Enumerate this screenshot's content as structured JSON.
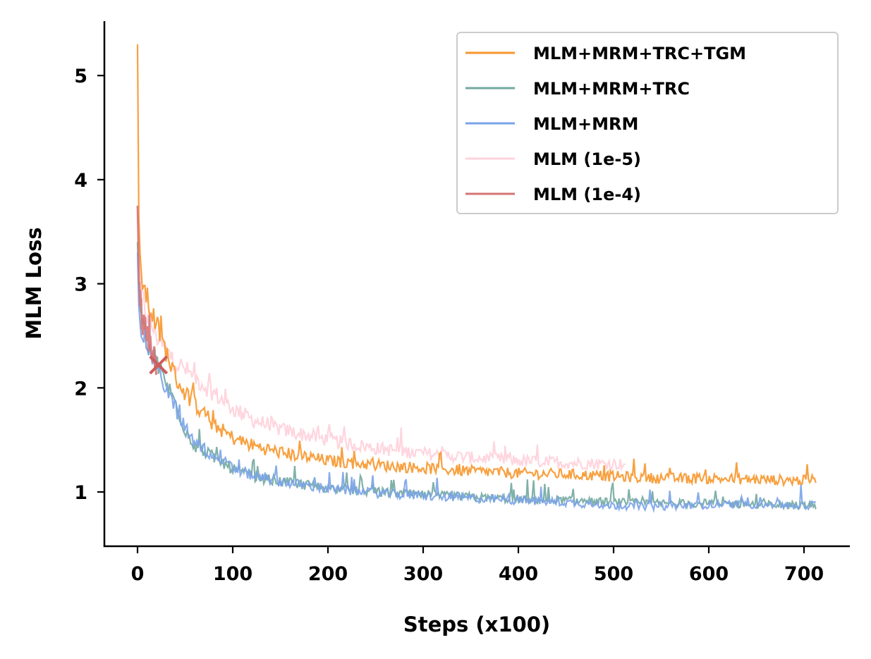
{
  "chart_data": {
    "type": "line",
    "xlabel": "Steps (x100)",
    "ylabel": "MLM Loss",
    "xlim": [
      -35,
      750
    ],
    "ylim": [
      0.5,
      5.55
    ],
    "xticks": [
      0,
      100,
      200,
      300,
      400,
      500,
      600,
      700
    ],
    "yticks": [
      1,
      2,
      3,
      4,
      5
    ],
    "grid": false,
    "legend_position": "top-right",
    "series": [
      {
        "name": "MLM+MRM+TRC+TGM",
        "color": "#f7962a",
        "x": [
          0,
          1,
          2,
          5,
          10,
          20,
          30,
          40,
          50,
          60,
          80,
          100,
          120,
          150,
          200,
          250,
          300,
          350,
          400,
          450,
          500,
          550,
          600,
          650,
          700,
          713
        ],
        "y": [
          5.3,
          3.7,
          3.2,
          3.05,
          2.85,
          2.6,
          2.35,
          2.1,
          1.95,
          1.85,
          1.65,
          1.52,
          1.45,
          1.38,
          1.3,
          1.26,
          1.23,
          1.2,
          1.18,
          1.17,
          1.15,
          1.13,
          1.13,
          1.12,
          1.11,
          1.12
        ]
      },
      {
        "name": "MLM+MRM+TRC",
        "color": "#72a8a0",
        "x": [
          0,
          2,
          5,
          10,
          20,
          30,
          40,
          50,
          60,
          80,
          100,
          120,
          150,
          200,
          250,
          300,
          350,
          400,
          450,
          500,
          550,
          600,
          650,
          700,
          713
        ],
        "y": [
          3.4,
          2.75,
          2.6,
          2.45,
          2.25,
          2.05,
          1.85,
          1.6,
          1.45,
          1.33,
          1.22,
          1.15,
          1.1,
          1.04,
          1.0,
          0.97,
          0.95,
          0.93,
          0.92,
          0.9,
          0.89,
          0.89,
          0.88,
          0.87,
          0.87
        ]
      },
      {
        "name": "MLM+MRM",
        "color": "#7aa3e8",
        "x": [
          0,
          2,
          5,
          10,
          20,
          30,
          40,
          50,
          60,
          80,
          100,
          120,
          150,
          200,
          250,
          300,
          350,
          400,
          450,
          500,
          550,
          600,
          650,
          700,
          713
        ],
        "y": [
          3.3,
          2.7,
          2.55,
          2.42,
          2.2,
          2.0,
          1.8,
          1.62,
          1.47,
          1.35,
          1.23,
          1.16,
          1.1,
          1.03,
          0.99,
          0.96,
          0.94,
          0.92,
          0.9,
          0.87,
          0.86,
          0.88,
          0.88,
          0.87,
          0.88
        ]
      },
      {
        "name": "MLM (1e-5)",
        "color": "#ffd3dc",
        "x": [
          0,
          2,
          5,
          10,
          20,
          30,
          40,
          60,
          80,
          100,
          120,
          150,
          200,
          250,
          300,
          350,
          400,
          450,
          500,
          513
        ],
        "y": [
          3.7,
          3.0,
          2.85,
          2.7,
          2.5,
          2.35,
          2.25,
          2.1,
          1.95,
          1.8,
          1.7,
          1.6,
          1.5,
          1.42,
          1.37,
          1.33,
          1.3,
          1.28,
          1.27,
          1.27
        ]
      },
      {
        "name": "MLM (1e-4)",
        "color": "#d67474",
        "x": [
          0,
          2,
          5,
          10,
          15,
          20
        ],
        "y": [
          3.75,
          2.9,
          2.65,
          2.5,
          2.35,
          2.22
        ]
      }
    ],
    "annotations": [
      {
        "marker": "x",
        "x": 22,
        "y": 2.22,
        "color": "#cd5c5c"
      }
    ]
  }
}
